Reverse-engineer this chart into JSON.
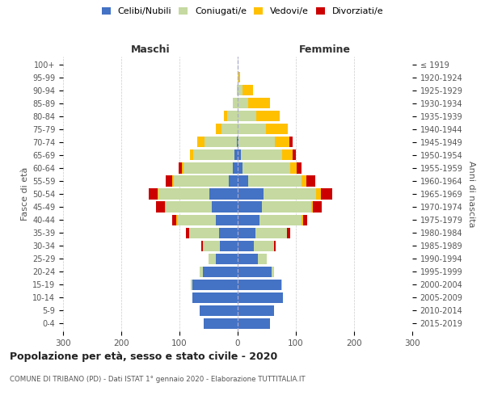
{
  "age_groups": [
    "0-4",
    "5-9",
    "10-14",
    "15-19",
    "20-24",
    "25-29",
    "30-34",
    "35-39",
    "40-44",
    "45-49",
    "50-54",
    "55-59",
    "60-64",
    "65-69",
    "70-74",
    "75-79",
    "80-84",
    "85-89",
    "90-94",
    "95-99",
    "100+"
  ],
  "birth_years": [
    "2015-2019",
    "2010-2014",
    "2005-2009",
    "2000-2004",
    "1995-1999",
    "1990-1994",
    "1985-1989",
    "1980-1984",
    "1975-1979",
    "1970-1974",
    "1965-1969",
    "1960-1964",
    "1955-1959",
    "1950-1954",
    "1945-1949",
    "1940-1944",
    "1935-1939",
    "1930-1934",
    "1925-1929",
    "1920-1924",
    "≤ 1919"
  ],
  "male": {
    "celibi": [
      58,
      65,
      78,
      78,
      60,
      38,
      30,
      32,
      38,
      45,
      48,
      15,
      8,
      5,
      2,
      0,
      0,
      0,
      0,
      0,
      0
    ],
    "coniugati": [
      0,
      0,
      0,
      2,
      5,
      12,
      30,
      52,
      65,
      78,
      88,
      95,
      85,
      72,
      55,
      28,
      18,
      8,
      2,
      0,
      0
    ],
    "vedovi": [
      0,
      0,
      0,
      0,
      0,
      0,
      0,
      0,
      2,
      2,
      2,
      2,
      3,
      5,
      12,
      10,
      5,
      0,
      0,
      0,
      0
    ],
    "divorziati": [
      0,
      0,
      0,
      0,
      0,
      0,
      2,
      5,
      8,
      15,
      15,
      12,
      5,
      0,
      0,
      0,
      0,
      0,
      0,
      0,
      0
    ]
  },
  "female": {
    "nubili": [
      55,
      62,
      78,
      75,
      58,
      35,
      28,
      30,
      38,
      42,
      45,
      18,
      8,
      5,
      2,
      0,
      0,
      0,
      0,
      0,
      0
    ],
    "coniugate": [
      0,
      0,
      0,
      2,
      5,
      15,
      35,
      55,
      72,
      85,
      90,
      92,
      82,
      72,
      62,
      48,
      32,
      18,
      8,
      2,
      0
    ],
    "vedove": [
      0,
      0,
      0,
      0,
      0,
      0,
      0,
      0,
      2,
      2,
      8,
      8,
      12,
      18,
      25,
      38,
      40,
      38,
      18,
      2,
      0
    ],
    "divorziate": [
      0,
      0,
      0,
      0,
      0,
      0,
      2,
      5,
      8,
      15,
      20,
      15,
      8,
      5,
      5,
      0,
      0,
      0,
      0,
      0,
      0
    ]
  },
  "color_celibi": "#4472c4",
  "color_coniugati": "#c5d9a0",
  "color_vedovi": "#ffc000",
  "color_divorziati": "#cc0000",
  "title": "Popolazione per età, sesso e stato civile - 2020",
  "subtitle": "COMUNE DI TRIBANO (PD) - Dati ISTAT 1° gennaio 2020 - Elaborazione TUTTITALIA.IT",
  "label_maschi": "Maschi",
  "label_femmine": "Femmine",
  "ylabel_left": "Fasce di età",
  "ylabel_right": "Anni di nascita",
  "xlim": 300,
  "bg_color": "#ffffff",
  "grid_color": "#cccccc",
  "legend_labels": [
    "Celibi/Nubili",
    "Coniugati/e",
    "Vedovi/e",
    "Divorziati/e"
  ]
}
